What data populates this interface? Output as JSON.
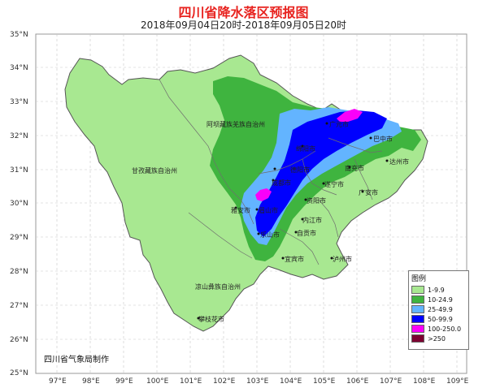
{
  "title": "四川省降水落区预报图",
  "subtitle": "2018年09月04日20时-2018年09月05日20时",
  "credit": "四川省气象局制作",
  "y_ticks": [
    "35°N",
    "34°N",
    "33°N",
    "32°N",
    "31°N",
    "30°N",
    "29°N",
    "28°N",
    "27°N",
    "26°N",
    "25°N"
  ],
  "x_ticks": [
    "97°E",
    "98°E",
    "99°E",
    "100°E",
    "101°E",
    "102°E",
    "103°E",
    "104°E",
    "105°E",
    "106°E",
    "107°E",
    "108°E",
    "109°E"
  ],
  "regions": [
    "阿坝藏族羌族自治州",
    "甘孜藏族自治州",
    "凉山彝族自治州"
  ],
  "cities": [
    "巴中市",
    "广元市",
    "绵阳市",
    "达州市",
    "南充市",
    "德阳市",
    "遂宁市",
    "广安市",
    "成都市",
    "资阳市",
    "雅安市",
    "眉山市",
    "内江市",
    "乐山市",
    "自贡市",
    "宜宾市",
    "泸州市",
    "攀枝花市"
  ],
  "legend": {
    "title": "图例",
    "items": [
      {
        "label": "1-9.9",
        "color": "#a8e891"
      },
      {
        "label": "10-24.9",
        "color": "#3fb43f"
      },
      {
        "label": "25-49.9",
        "color": "#63b4ff"
      },
      {
        "label": "50-99.9",
        "color": "#0000fe"
      },
      {
        "label": "100-250.0",
        "color": "#fa00fa"
      },
      {
        "label": ">250",
        "color": "#7d0032"
      }
    ]
  },
  "colors": {
    "province_fill": "#ffffff",
    "title": "#e8231f"
  }
}
